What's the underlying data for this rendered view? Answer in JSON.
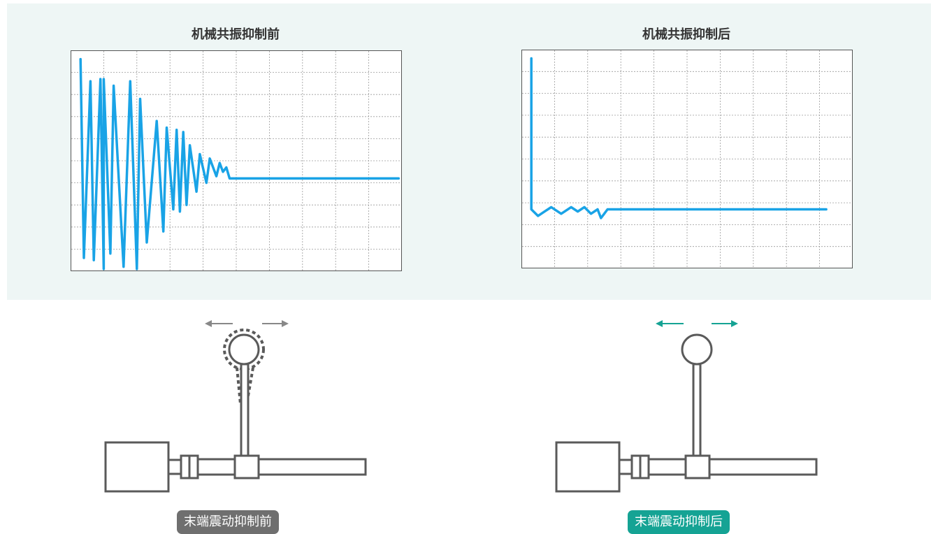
{
  "charts": {
    "before": {
      "title": "机械共振抑制前"
    },
    "after": {
      "title": "机械共振抑制后"
    }
  },
  "chart_data": [
    {
      "type": "line",
      "title": "机械共振抑制前",
      "xlabel": "",
      "ylabel": "",
      "grid": true,
      "x_divisions": 10,
      "y_divisions": 10,
      "line_color": "#19a3e6",
      "series": [
        {
          "values": [
            [
              0.3,
              9.6
            ],
            [
              0.4,
              0.6
            ],
            [
              0.6,
              8.6
            ],
            [
              0.7,
              0.5
            ],
            [
              0.9,
              8.7
            ],
            [
              1.0,
              0.1
            ],
            [
              1.0,
              8.7
            ],
            [
              1.2,
              0.8
            ],
            [
              1.3,
              8.4
            ],
            [
              1.6,
              0.2
            ],
            [
              1.8,
              8.6
            ],
            [
              2.0,
              0.1
            ],
            [
              2.1,
              7.8
            ],
            [
              2.3,
              1.3
            ],
            [
              2.6,
              6.8
            ],
            [
              2.8,
              1.8
            ],
            [
              2.9,
              6.5
            ],
            [
              3.1,
              2.8
            ],
            [
              3.2,
              6.4
            ],
            [
              3.3,
              2.7
            ],
            [
              3.4,
              6.3
            ],
            [
              3.5,
              3.0
            ],
            [
              3.6,
              5.7
            ],
            [
              3.8,
              3.6
            ],
            [
              3.9,
              5.3
            ],
            [
              4.1,
              4.0
            ],
            [
              4.2,
              5.1
            ],
            [
              4.4,
              4.3
            ],
            [
              4.5,
              4.9
            ],
            [
              4.6,
              4.5
            ],
            [
              4.7,
              4.7
            ],
            [
              4.8,
              4.2
            ],
            [
              5.0,
              4.2
            ],
            [
              9.9,
              4.2
            ]
          ]
        }
      ]
    },
    {
      "type": "line",
      "title": "机械共振抑制后",
      "xlabel": "",
      "ylabel": "",
      "grid": true,
      "x_divisions": 10,
      "y_divisions": 10,
      "line_color": "#19a3e6",
      "series": [
        {
          "values": [
            [
              0.3,
              9.6
            ],
            [
              0.3,
              2.7
            ],
            [
              0.5,
              2.4
            ],
            [
              0.7,
              2.6
            ],
            [
              0.9,
              2.8
            ],
            [
              1.2,
              2.5
            ],
            [
              1.5,
              2.8
            ],
            [
              1.7,
              2.6
            ],
            [
              1.9,
              2.8
            ],
            [
              2.1,
              2.5
            ],
            [
              2.3,
              2.7
            ],
            [
              2.4,
              2.3
            ],
            [
              2.5,
              2.5
            ],
            [
              2.6,
              2.7
            ],
            [
              9.2,
              2.7
            ]
          ]
        }
      ]
    }
  ],
  "diagrams": {
    "colors": {
      "machine_stroke": "#5a5a5a",
      "vibration_arrow": "#888888",
      "stable_arrow": "#15a394"
    }
  },
  "labels": {
    "before": "末端震动抑制前",
    "after": "末端震动抑制后"
  }
}
